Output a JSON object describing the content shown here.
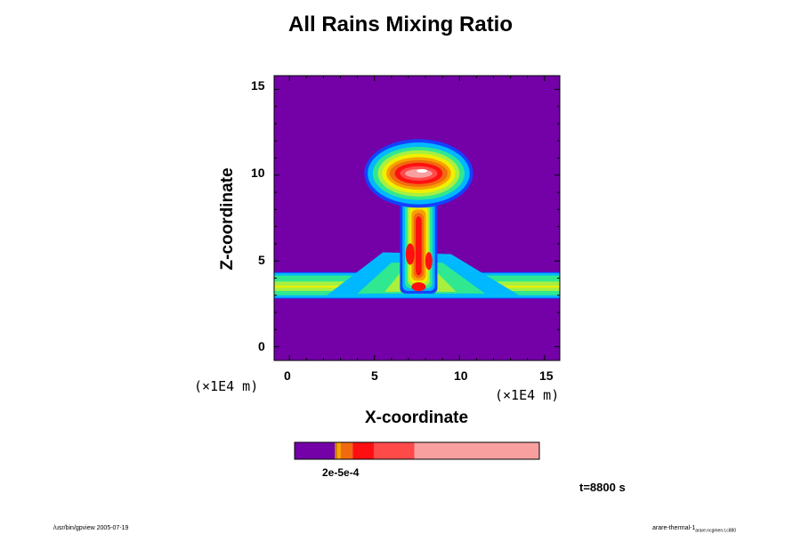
{
  "chart_data": {
    "type": "heatmap",
    "title": "All Rains Mixing Ratio",
    "xlabel": "X-coordinate",
    "ylabel": "Z-coordinate",
    "x_unit": "(×1E4 m)",
    "y_unit": "(×1E4 m)",
    "xlim": [
      -0.9,
      15.9
    ],
    "ylim": [
      -0.8,
      15.8
    ],
    "x_ticks": [
      "0",
      "5",
      "10",
      "15"
    ],
    "y_ticks": [
      "0",
      "5",
      "10",
      "15"
    ],
    "time_label": "t=8800 s",
    "colorbar": {
      "label": "2e-5e-4",
      "colors": [
        "#7400a8",
        "#d08000",
        "#f8a000",
        "#f06a10",
        "#ff1010",
        "#ff4a4a",
        "#f8a0a0"
      ],
      "fractions": [
        0.165,
        0.01,
        0.014,
        0.048,
        0.088,
        0.165,
        0.51
      ]
    },
    "background_color": "#7400a8",
    "rain_layer": {
      "z_range": [
        2.8,
        4.3
      ],
      "x_range": [
        -0.9,
        15.9
      ]
    },
    "plume": {
      "x_center": 7.6,
      "z_base": 3.0,
      "z_top": 12.0,
      "head_z": 10.1,
      "head_width": 5.4
    }
  },
  "footer": {
    "left": "/usr/bin/gpview 2005-07-19",
    "right_main": "arare-thermal-1",
    "right_sub": "arare.ncgmen.t.c880"
  }
}
